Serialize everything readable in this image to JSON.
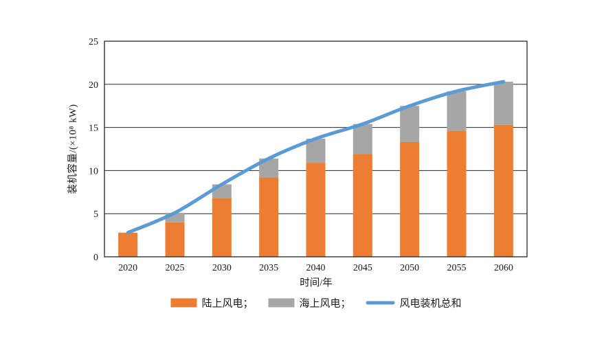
{
  "chart_data": {
    "type": "bar",
    "stacked": true,
    "title": "",
    "xlabel": "时间/年",
    "ylabel": "装机容量/(×10⁸ kW)",
    "categories": [
      "2020",
      "2025",
      "2030",
      "2035",
      "2040",
      "2045",
      "2050",
      "2055",
      "2060"
    ],
    "series": [
      {
        "name": "陆上风电",
        "type": "bar",
        "color": "#ED7D31",
        "values": [
          2.8,
          4.0,
          6.8,
          9.2,
          10.9,
          11.9,
          13.3,
          14.6,
          15.3
        ]
      },
      {
        "name": "海上风电",
        "type": "bar",
        "color": "#A6A6A6",
        "values": [
          0.0,
          1.1,
          1.6,
          2.2,
          2.8,
          3.5,
          4.2,
          4.6,
          5.0
        ]
      },
      {
        "name": "风电装机总和",
        "type": "line",
        "color": "#5B9BD5",
        "values": [
          2.8,
          5.1,
          8.4,
          11.4,
          13.7,
          15.4,
          17.5,
          19.2,
          20.3
        ]
      }
    ],
    "legend_labels": [
      "陆上风电；",
      "海上风电；",
      "风电装机总和"
    ],
    "legend_position": "bottom",
    "ylim": [
      0,
      25
    ],
    "yticks": [
      0,
      5,
      10,
      15,
      20,
      25
    ],
    "grid": true,
    "axis_color": "#262626",
    "background_color": "#FFFFFF"
  }
}
